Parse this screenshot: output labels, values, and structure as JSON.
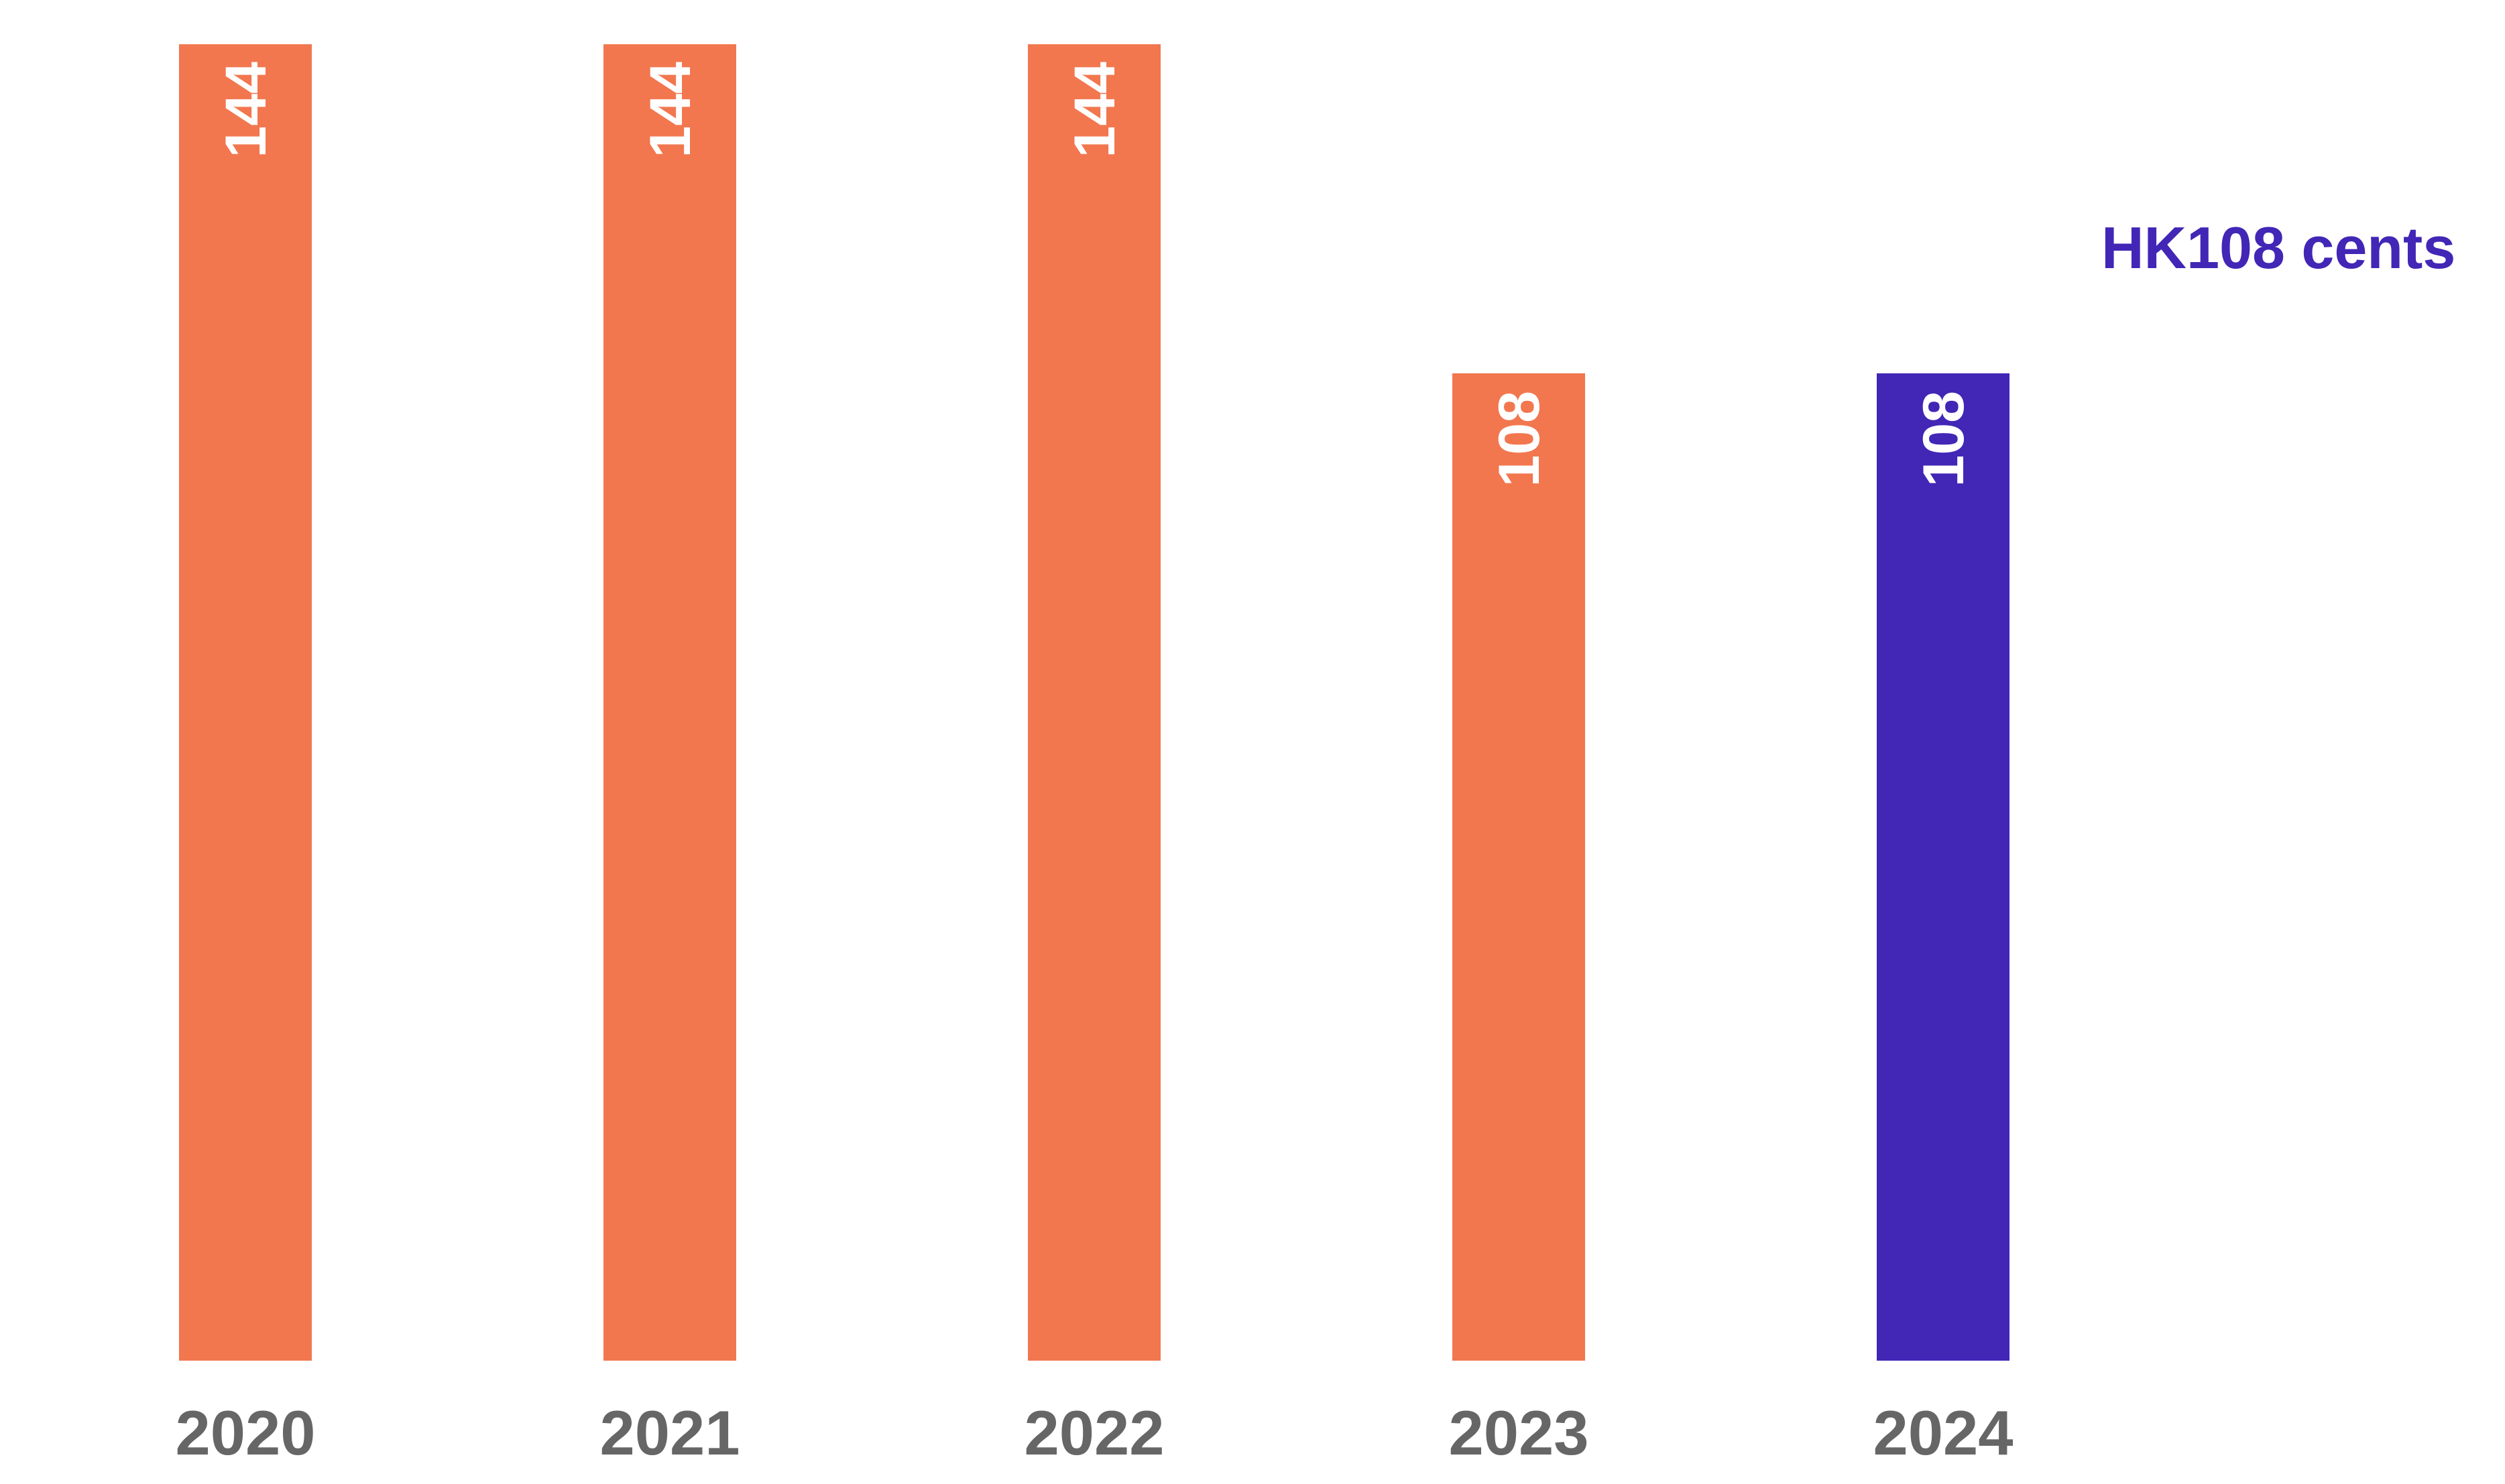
{
  "chart_data": {
    "type": "bar",
    "categories": [
      "2020",
      "2021",
      "2022",
      "2023",
      "2024"
    ],
    "values": [
      144,
      144,
      144,
      108,
      108
    ],
    "data_labels": [
      "144",
      "144",
      "144",
      "108",
      "108"
    ],
    "highlight_index": 4,
    "annotation": "HK108 cents",
    "title": "",
    "xlabel": "",
    "ylabel": "",
    "grid": false,
    "colors": {
      "bar": "#F2774F",
      "highlight": "#4226B6",
      "tick_label": "#666666",
      "data_label": "#FFFFFF"
    }
  }
}
